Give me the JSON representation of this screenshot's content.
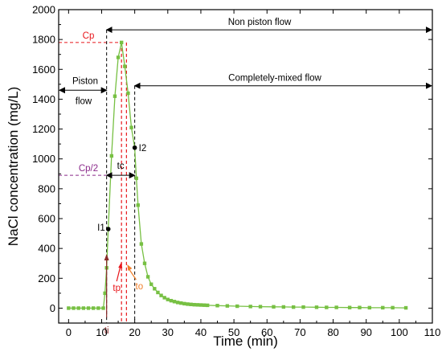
{
  "chart_data": {
    "type": "line",
    "xlabel": "Time (min)",
    "ylabel": "NaCl concentration (mg/L)",
    "xlim": [
      -3,
      110
    ],
    "ylim": [
      -100,
      2000
    ],
    "xticks": [
      0,
      10,
      20,
      30,
      40,
      50,
      60,
      70,
      80,
      90,
      100,
      110
    ],
    "yticks": [
      0,
      200,
      400,
      600,
      800,
      1000,
      1200,
      1400,
      1600,
      1800,
      2000
    ],
    "grid": false,
    "legend": "none",
    "series": [
      {
        "color": "#77c043",
        "marker": "square",
        "x": [
          0,
          1.5,
          3,
          4.5,
          6,
          7.5,
          9,
          10.5,
          11,
          11.5,
          12,
          13,
          14,
          15,
          16,
          17,
          18,
          19,
          20,
          20.5,
          21,
          22,
          23,
          24,
          25,
          26,
          27,
          28,
          29,
          30,
          31,
          32,
          33,
          34,
          35,
          36,
          37,
          38,
          39,
          40,
          41,
          42,
          45,
          48,
          51,
          55,
          58,
          62,
          65,
          68,
          71,
          75,
          78,
          81,
          85,
          88,
          91,
          95,
          98,
          102
        ],
        "y": [
          0,
          0,
          0,
          0,
          0,
          0,
          0,
          0,
          100,
          270,
          530,
          1020,
          1420,
          1680,
          1780,
          1620,
          1440,
          1210,
          1075,
          870,
          690,
          430,
          300,
          210,
          160,
          130,
          105,
          85,
          70,
          58,
          50,
          44,
          38,
          34,
          30,
          27,
          25,
          23,
          22,
          21,
          20,
          19,
          17,
          15,
          13,
          11,
          10,
          9,
          8,
          7,
          7,
          6,
          5,
          5,
          4,
          4,
          3,
          3,
          3,
          2
        ]
      }
    ],
    "annotations": {
      "cp_label": "Cp",
      "cp_value": 1780,
      "cp2_label": "Cp/2",
      "cp2_value": 890,
      "ti_label": "ti",
      "ti_x": 11.5,
      "tp_label": "tp",
      "tp_x": 16,
      "to_label": "to",
      "to_x": 17.5,
      "end_x": 20,
      "i1_label": "I1",
      "i1": [
        12,
        530
      ],
      "i2_label": "I2",
      "i2": [
        20,
        1075
      ],
      "tc_label": "tc",
      "tc_y": 890,
      "non_piston_label": "Non piston flow",
      "non_piston_y": 1865,
      "piston_label_1": "Piston",
      "piston_label_2": "flow",
      "piston_y": 1460,
      "mixed_label": "Completely-mixed flow",
      "mixed_y": 1490,
      "cp_color": "#e8161b",
      "cp2_color": "#8b2a8b",
      "ti_color": "#8a2a2a",
      "to_color": "#f07f2a"
    }
  }
}
